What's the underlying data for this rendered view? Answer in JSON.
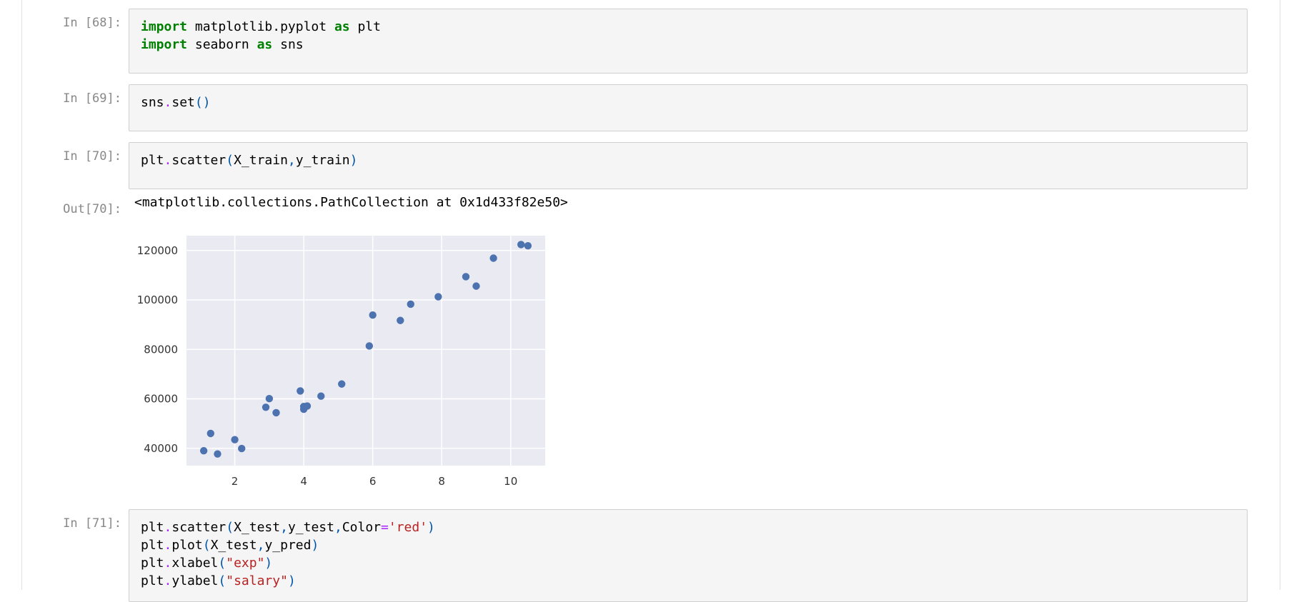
{
  "cells": [
    {
      "prompt": "In [68]:",
      "lines": [
        [
          {
            "t": "import",
            "c": "kw"
          },
          {
            "t": " matplotlib.pyplot ",
            "c": ""
          },
          {
            "t": "as",
            "c": "kw"
          },
          {
            "t": " plt",
            "c": ""
          }
        ],
        [
          {
            "t": "import",
            "c": "kw"
          },
          {
            "t": " seaborn ",
            "c": ""
          },
          {
            "t": "as",
            "c": "kw"
          },
          {
            "t": " sns",
            "c": ""
          }
        ]
      ]
    },
    {
      "prompt": "In [69]:",
      "lines": [
        [
          {
            "t": "sns",
            "c": ""
          },
          {
            "t": ".",
            "c": "op"
          },
          {
            "t": "set",
            "c": ""
          },
          {
            "t": "()",
            "c": "paren"
          }
        ]
      ]
    },
    {
      "prompt": "In [70]:",
      "lines": [
        [
          {
            "t": "plt",
            "c": ""
          },
          {
            "t": ".",
            "c": "op"
          },
          {
            "t": "scatter",
            "c": ""
          },
          {
            "t": "(",
            "c": "paren"
          },
          {
            "t": "X_train",
            "c": ""
          },
          {
            "t": ",",
            "c": "paren"
          },
          {
            "t": "y_train",
            "c": ""
          },
          {
            "t": ")",
            "c": "paren"
          }
        ]
      ]
    },
    {
      "prompt": "In [71]:",
      "lines": [
        [
          {
            "t": "plt",
            "c": ""
          },
          {
            "t": ".",
            "c": "op"
          },
          {
            "t": "scatter",
            "c": ""
          },
          {
            "t": "(",
            "c": "paren"
          },
          {
            "t": "X_test",
            "c": ""
          },
          {
            "t": ",",
            "c": "paren"
          },
          {
            "t": "y_test",
            "c": ""
          },
          {
            "t": ",",
            "c": "paren"
          },
          {
            "t": "Color",
            "c": ""
          },
          {
            "t": "=",
            "c": "op"
          },
          {
            "t": "'red'",
            "c": "str"
          },
          {
            "t": ")",
            "c": "paren"
          }
        ],
        [
          {
            "t": "plt",
            "c": ""
          },
          {
            "t": ".",
            "c": "op"
          },
          {
            "t": "plot",
            "c": ""
          },
          {
            "t": "(",
            "c": "paren"
          },
          {
            "t": "X_test",
            "c": ""
          },
          {
            "t": ",",
            "c": "paren"
          },
          {
            "t": "y_pred",
            "c": ""
          },
          {
            "t": ")",
            "c": "paren"
          }
        ],
        [
          {
            "t": "plt",
            "c": ""
          },
          {
            "t": ".",
            "c": "op"
          },
          {
            "t": "xlabel",
            "c": ""
          },
          {
            "t": "(",
            "c": "paren"
          },
          {
            "t": "\"exp\"",
            "c": "str"
          },
          {
            "t": ")",
            "c": "paren"
          }
        ],
        [
          {
            "t": "plt",
            "c": ""
          },
          {
            "t": ".",
            "c": "op"
          },
          {
            "t": "ylabel",
            "c": ""
          },
          {
            "t": "(",
            "c": "paren"
          },
          {
            "t": "\"salary\"",
            "c": "str"
          },
          {
            "t": ")",
            "c": "paren"
          }
        ]
      ]
    }
  ],
  "output": {
    "prompt": "Out[70]:",
    "text": "<matplotlib.collections.PathCollection at 0x1d433f82e50>"
  },
  "chart_data": {
    "type": "scatter",
    "title": "",
    "xlabel": "",
    "ylabel": "",
    "xlim": [
      0.6,
      11.0
    ],
    "ylim": [
      33000,
      126000
    ],
    "xticks": [
      2,
      4,
      6,
      8,
      10
    ],
    "yticks": [
      40000,
      60000,
      80000,
      100000,
      120000
    ],
    "grid": true,
    "point_color": "#4c72b0",
    "background": "#eaeaf2",
    "points": [
      [
        1.1,
        39000
      ],
      [
        1.3,
        46000
      ],
      [
        1.5,
        37700
      ],
      [
        2.0,
        43500
      ],
      [
        2.2,
        39900
      ],
      [
        2.9,
        56600
      ],
      [
        3.0,
        60100
      ],
      [
        3.2,
        54400
      ],
      [
        3.9,
        63200
      ],
      [
        4.0,
        55800
      ],
      [
        4.0,
        56900
      ],
      [
        4.1,
        57100
      ],
      [
        4.5,
        61100
      ],
      [
        5.1,
        66000
      ],
      [
        5.9,
        81400
      ],
      [
        6.0,
        93900
      ],
      [
        6.8,
        91700
      ],
      [
        7.1,
        98300
      ],
      [
        7.9,
        101300
      ],
      [
        8.7,
        109400
      ],
      [
        9.0,
        105600
      ],
      [
        9.5,
        116900
      ],
      [
        10.3,
        122400
      ],
      [
        10.5,
        121900
      ]
    ]
  }
}
